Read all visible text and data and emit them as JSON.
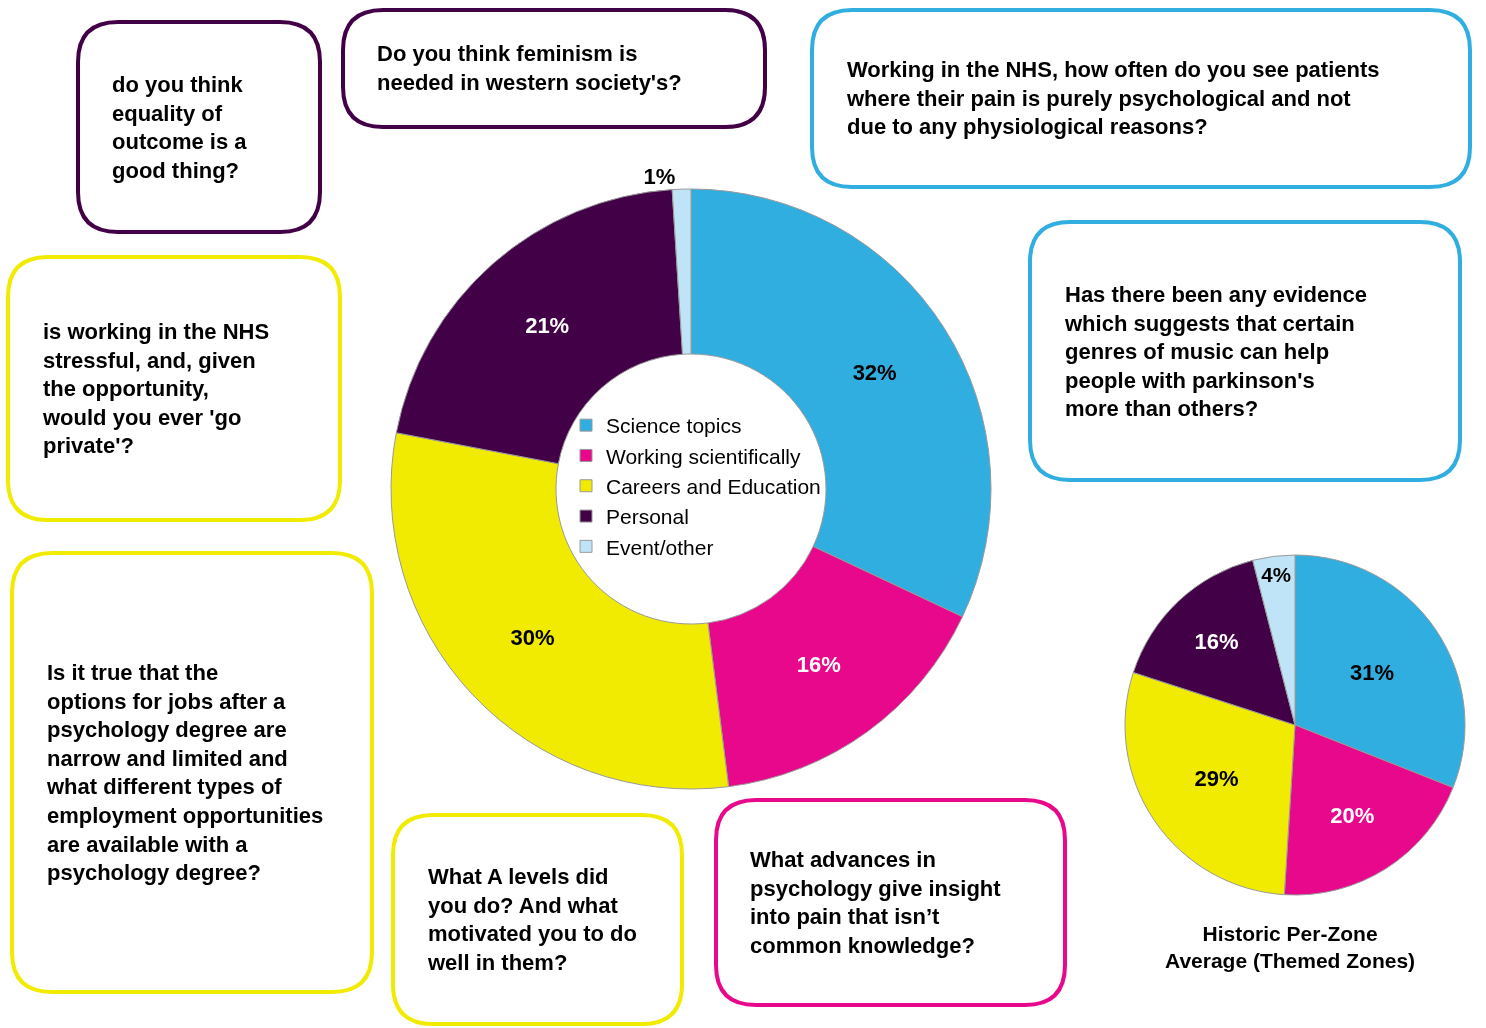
{
  "chart_data": [
    {
      "type": "donut",
      "categories": [
        "Science topics",
        "Working scientifically",
        "Careers and Education",
        "Personal",
        "Event/other"
      ],
      "values": [
        32,
        16,
        30,
        21,
        1
      ],
      "value_labels": [
        "32%",
        "16%",
        "30%",
        "21%",
        "1%"
      ],
      "colors": [
        "#31aee0",
        "#e8088c",
        "#f0eb00",
        "#420046",
        "#bfe4f7"
      ],
      "legend": "center",
      "annotations": [
        "do you think equality of outcome is a good thing?",
        "Do you think feminism is needed in western society's?",
        "Working in the NHS, how often do you see patients where their pain is purely psychological and not due to any physiological reasons?",
        "Has there been any evidence which suggests that certain genres of music can help people with parkinson's more than others?",
        "is working in the NHS stressful, and, given the opportunity, would you ever 'go private'?",
        "Is it true that the options for jobs after a psychology degree are narrow and limited and what different types of employment opportunities are available with a psychology degree?",
        "What A levels did you do? And what motivated you to do well in them?",
        "What advances in psychology give insight into pain that isn’t common knowledge?"
      ]
    },
    {
      "type": "pie",
      "title": "Historic Per-Zone Average (Themed Zones)",
      "categories": [
        null,
        null,
        null,
        null,
        null
      ],
      "values": [
        31,
        20,
        29,
        16,
        4
      ],
      "value_labels": [
        "31%",
        "20%",
        "29%",
        "16%",
        "4%"
      ],
      "colors": [
        "#31aee0",
        "#e8088c",
        "#f0eb00",
        "#420046",
        "#bfe4f7"
      ]
    }
  ]
}
